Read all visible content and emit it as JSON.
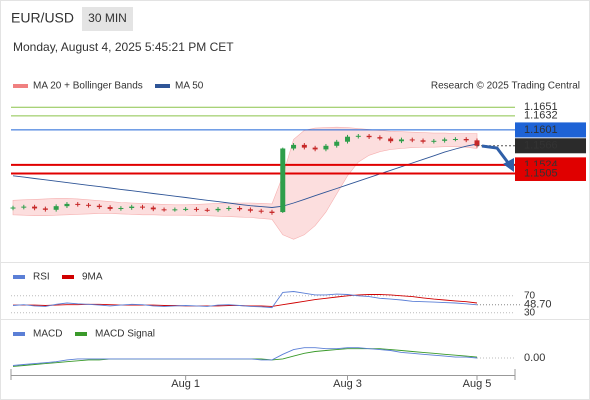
{
  "chart_data": {
    "type": "candlestick",
    "title": "EUR/USD",
    "timeframe": "30 MIN",
    "subtitle": "Monday, August 4, 2025 5:45:21 PM CET",
    "legend": [
      "MA 20 + Bollinger Bands",
      "MA 50"
    ],
    "source": "Research © 2025 Trading Central",
    "up_color": "#2e9e4a",
    "down_color": "#c62828",
    "band_color": "#fbd3d3",
    "ma50_color": "#2f5597",
    "categories": [
      null,
      null,
      null,
      null,
      null,
      null,
      null,
      null,
      null,
      null,
      null,
      null,
      null,
      null,
      null,
      null,
      "Aug 1",
      null,
      null,
      null,
      null,
      null,
      null,
      null,
      null,
      null,
      null,
      null,
      null,
      null,
      null,
      "Aug 3",
      null,
      null,
      null,
      null,
      null,
      null,
      null,
      null,
      null,
      null,
      null,
      "Aug 5"
    ],
    "candles": [
      [
        1.1428,
        1.1434,
        1.1424,
        1.143
      ],
      [
        1.143,
        1.1436,
        1.1426,
        1.1432
      ],
      [
        1.1432,
        1.1436,
        1.1424,
        1.1428
      ],
      [
        1.1428,
        1.1432,
        1.1421,
        1.1425
      ],
      [
        1.1425,
        1.1437,
        1.1421,
        1.1433
      ],
      [
        1.1433,
        1.1442,
        1.1429,
        1.1438
      ],
      [
        1.1438,
        1.1442,
        1.1432,
        1.1436
      ],
      [
        1.1436,
        1.144,
        1.143,
        1.1434
      ],
      [
        1.1434,
        1.1438,
        1.1427,
        1.1431
      ],
      [
        1.1431,
        1.1435,
        1.1423,
        1.1427
      ],
      [
        1.1427,
        1.1433,
        1.1423,
        1.1429
      ],
      [
        1.1429,
        1.1436,
        1.1425,
        1.1432
      ],
      [
        1.1432,
        1.1436,
        1.1426,
        1.143
      ],
      [
        1.143,
        1.1434,
        1.1422,
        1.1426
      ],
      [
        1.1426,
        1.143,
        1.1421,
        1.1425
      ],
      [
        1.1425,
        1.143,
        1.1421,
        1.1426
      ],
      [
        1.1426,
        1.1431,
        1.1422,
        1.1427
      ],
      [
        1.1427,
        1.1431,
        1.1421,
        1.1425
      ],
      [
        1.1425,
        1.1429,
        1.142,
        1.1424
      ],
      [
        1.1424,
        1.1431,
        1.142,
        1.1427
      ],
      [
        1.1427,
        1.1433,
        1.1423,
        1.1429
      ],
      [
        1.1429,
        1.1433,
        1.1422,
        1.1426
      ],
      [
        1.1426,
        1.143,
        1.1419,
        1.1423
      ],
      [
        1.1423,
        1.1427,
        1.1417,
        1.1421
      ],
      [
        1.1421,
        1.1425,
        1.1414,
        1.1418
      ],
      [
        1.142,
        1.1562,
        1.1418,
        1.156
      ],
      [
        1.156,
        1.1572,
        1.1556,
        1.1568
      ],
      [
        1.1568,
        1.1572,
        1.1558,
        1.1562
      ],
      [
        1.1562,
        1.1566,
        1.1554,
        1.1558
      ],
      [
        1.1558,
        1.157,
        1.1554,
        1.1566
      ],
      [
        1.1566,
        1.1579,
        1.1562,
        1.1575
      ],
      [
        1.1575,
        1.159,
        1.1571,
        1.1586
      ],
      [
        1.1586,
        1.1592,
        1.1582,
        1.1588
      ],
      [
        1.1588,
        1.1592,
        1.1581,
        1.1585
      ],
      [
        1.1585,
        1.1589,
        1.1578,
        1.1582
      ],
      [
        1.1582,
        1.1586,
        1.1572,
        1.1576
      ],
      [
        1.1576,
        1.1584,
        1.1572,
        1.158
      ],
      [
        1.158,
        1.1584,
        1.1574,
        1.1578
      ],
      [
        1.1578,
        1.1582,
        1.1571,
        1.1575
      ],
      [
        1.1575,
        1.1581,
        1.1571,
        1.1577
      ],
      [
        1.1577,
        1.1584,
        1.1573,
        1.158
      ],
      [
        1.158,
        1.1585,
        1.1576,
        1.1581
      ],
      [
        1.1581,
        1.1585,
        1.1574,
        1.1578
      ],
      [
        1.1578,
        1.1582,
        1.1562,
        1.1566
      ]
    ],
    "bb_upper": [
      1.1446,
      1.1447,
      1.1448,
      1.1449,
      1.145,
      1.145,
      1.1449,
      1.1447,
      1.1445,
      1.1443,
      1.1441,
      1.144,
      1.1439,
      1.1438,
      1.1437,
      1.1436,
      1.1436,
      1.1437,
      1.1438,
      1.1439,
      1.144,
      1.144,
      1.144,
      1.1439,
      1.1438,
      1.15,
      1.158,
      1.16,
      1.1605,
      1.1606,
      1.1607,
      1.1606,
      1.1604,
      1.1602,
      1.16,
      1.1598,
      1.1597,
      1.1596,
      1.1595,
      1.1594,
      1.1594,
      1.1593,
      1.1593,
      1.1593
    ],
    "bb_lower": [
      1.1414,
      1.1413,
      1.1412,
      1.1412,
      1.1413,
      1.1414,
      1.1415,
      1.1416,
      1.1417,
      1.1417,
      1.1416,
      1.1415,
      1.1414,
      1.1414,
      1.1413,
      1.1413,
      1.1413,
      1.1412,
      1.1412,
      1.1411,
      1.141,
      1.1409,
      1.1408,
      1.1406,
      1.1404,
      1.137,
      1.136,
      1.137,
      1.139,
      1.142,
      1.146,
      1.15,
      1.153,
      1.1545,
      1.1553,
      1.1558,
      1.156,
      1.1562,
      1.1563,
      1.1563,
      1.1564,
      1.1564,
      1.1563,
      1.156
    ],
    "ma50": [
      1.15,
      1.1497,
      1.1494,
      1.1491,
      1.1488,
      1.1485,
      1.1482,
      1.1479,
      1.1476,
      1.1473,
      1.147,
      1.1467,
      1.1464,
      1.1461,
      1.1458,
      1.1455,
      1.1452,
      1.1449,
      1.1446,
      1.1443,
      1.144,
      1.1437,
      1.1434,
      1.1432,
      1.143,
      1.1433,
      1.144,
      1.1448,
      1.1456,
      1.1464,
      1.1472,
      1.148,
      1.1488,
      1.1496,
      1.1504,
      1.1512,
      1.152,
      1.1528,
      1.1536,
      1.1544,
      1.1552,
      1.1559,
      1.1565,
      1.157
    ],
    "ylim": [
      1.131,
      1.1755
    ],
    "levels": [
      {
        "value": 1.1651,
        "color": "#8bc34a",
        "style": "text"
      },
      {
        "value": 1.1632,
        "color": "#8bc34a",
        "style": "text"
      },
      {
        "value": 1.1601,
        "color": "#1e63d6",
        "style": "box"
      },
      {
        "value": 1.1524,
        "color": "#e00000",
        "style": "box"
      },
      {
        "value": 1.1505,
        "color": "#e00000",
        "style": "box"
      }
    ],
    "last_price": 1.1566,
    "rsi": {
      "legend": [
        "RSI",
        "9MA"
      ],
      "colors": [
        "#5b7fd6",
        "#d00000"
      ],
      "ylim": [
        0,
        100
      ],
      "yticks": [
        30,
        70
      ],
      "last": {
        "value": 48.7,
        "label": "48.70"
      },
      "values": [
        47,
        49,
        46,
        45,
        50,
        53,
        51,
        50,
        48,
        46,
        48,
        50,
        49,
        46,
        45,
        46,
        47,
        46,
        45,
        48,
        49,
        47,
        45,
        44,
        42,
        78,
        80,
        76,
        72,
        72,
        74,
        73,
        70,
        68,
        64,
        62,
        60,
        57,
        56,
        55,
        54,
        53,
        51,
        48.7
      ],
      "ma": [
        48,
        48,
        48,
        47,
        48,
        49,
        49,
        50,
        50,
        49,
        48,
        48,
        48,
        48,
        47,
        47,
        46,
        46,
        46,
        46,
        47,
        47,
        46,
        46,
        45,
        49,
        53,
        57,
        61,
        64,
        67,
        70,
        72,
        73,
        73,
        72,
        70,
        68,
        65,
        62,
        60,
        58,
        56,
        53
      ]
    },
    "macd": {
      "legend": [
        "MACD",
        "MACD Signal"
      ],
      "colors": [
        "#5b7fd6",
        "#3a9a2a"
      ],
      "ylim": [
        -0.0015,
        0.0015
      ],
      "yticks": [
        {
          "value": 0,
          "label": "0.00"
        }
      ],
      "values": [
        -0.0008,
        -0.0007,
        -0.0006,
        -0.0005,
        -0.0004,
        -0.0002,
        -0.0001,
        -0.0001,
        -0.0001,
        -0.0001,
        -0.0001,
        -0.0001,
        -0.0001,
        -0.0001,
        -0.0001,
        -0.0001,
        -0.0001,
        -0.0001,
        -0.0001,
        -0.0001,
        -0.0001,
        -0.0001,
        -0.0001,
        -0.0002,
        -0.0002,
        0.0004,
        0.0009,
        0.0011,
        0.0011,
        0.001,
        0.001,
        0.0011,
        0.0011,
        0.001,
        0.0009,
        0.0008,
        0.0006,
        0.0005,
        0.0004,
        0.0003,
        0.0002,
        0.0001,
        0.0001,
        0.0
      ],
      "signal": [
        -0.0009,
        -0.0008,
        -0.0007,
        -0.0006,
        -0.0005,
        -0.0004,
        -0.0003,
        -0.0002,
        -0.0002,
        -0.0001,
        -0.0001,
        -0.0001,
        -0.0001,
        -0.0001,
        -0.0001,
        -0.0001,
        -0.0001,
        -0.0001,
        -0.0001,
        -0.0001,
        -0.0001,
        -0.0001,
        -0.0001,
        -0.0001,
        -0.0002,
        -0.0001,
        0.0002,
        0.0005,
        0.0007,
        0.0008,
        0.0009,
        0.001,
        0.001,
        0.001,
        0.001,
        0.0009,
        0.0008,
        0.0007,
        0.0006,
        0.0005,
        0.0004,
        0.0003,
        0.0002,
        0.0001
      ]
    }
  }
}
